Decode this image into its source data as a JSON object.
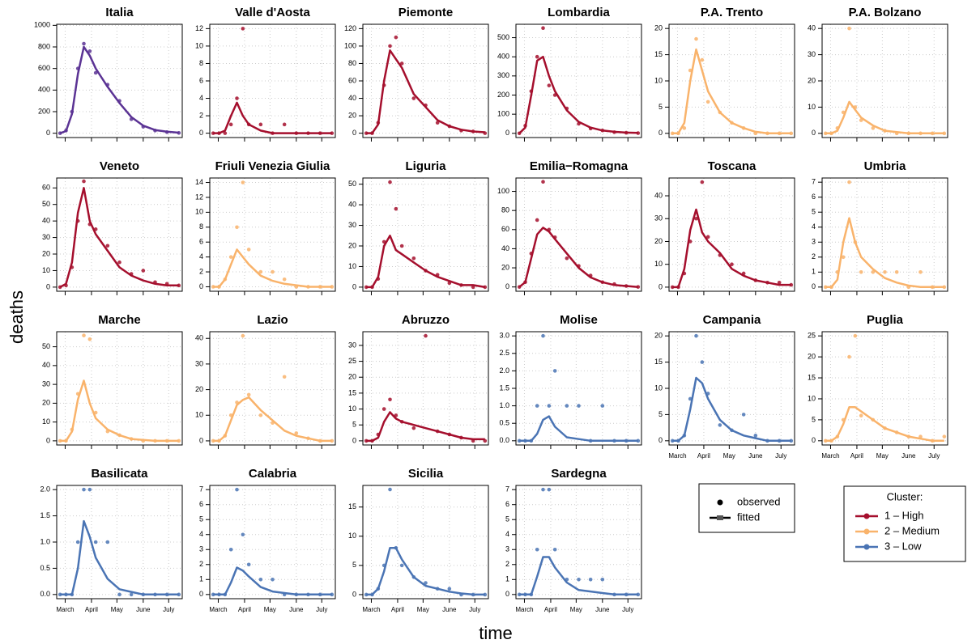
{
  "figure": {
    "x_label": "time",
    "y_label": "deaths",
    "grid": true,
    "x": [
      0,
      7,
      14,
      21,
      28,
      35,
      42,
      56,
      70,
      84,
      98,
      112,
      126,
      140
    ],
    "xlim": [
      -4,
      144
    ],
    "xticks": [
      {
        "value": 6,
        "label": "March"
      },
      {
        "value": 37,
        "label": "April"
      },
      {
        "value": 67,
        "label": "May"
      },
      {
        "value": 98,
        "label": "June"
      },
      {
        "value": 128,
        "label": "July"
      }
    ],
    "legend_marks": [
      "observed",
      "fitted"
    ],
    "legend": {
      "title": "Cluster:",
      "entries": [
        {
          "name": "1 – High",
          "color": "#a50f2d"
        },
        {
          "name": "2 – Medium",
          "color": "#f9b36b"
        },
        {
          "name": "3 – Low",
          "color": "#4a74b4"
        }
      ]
    }
  },
  "chart_data": [
    {
      "type": "line",
      "title": "Italia",
      "color": "#5b3394",
      "ylim": [
        -40,
        1010
      ],
      "yticks": [
        0,
        200,
        400,
        600,
        800,
        1000
      ],
      "show_xtick_labels": false,
      "fitted": [
        0,
        20,
        180,
        550,
        800,
        720,
        600,
        430,
        280,
        150,
        70,
        30,
        15,
        5
      ],
      "observed": [
        0,
        25,
        200,
        600,
        830,
        760,
        560,
        450,
        300,
        130,
        60,
        25,
        10,
        3
      ]
    },
    {
      "type": "line",
      "title": "Valle d'Aosta",
      "color": "#a50f2d",
      "ylim": [
        -0.5,
        12.5
      ],
      "yticks": [
        0,
        2,
        4,
        6,
        8,
        10,
        12
      ],
      "show_xtick_labels": false,
      "fitted": [
        0,
        0,
        0.3,
        2,
        3.5,
        2,
        1,
        0.3,
        0,
        0,
        0,
        0,
        0,
        0
      ],
      "observed": [
        0,
        0,
        0,
        1,
        4,
        12,
        1,
        1,
        0,
        1,
        0,
        0,
        0,
        0
      ]
    },
    {
      "type": "line",
      "title": "Piemonte",
      "color": "#a50f2d",
      "ylim": [
        -5,
        125
      ],
      "yticks": [
        0,
        20,
        40,
        60,
        80,
        100,
        120
      ],
      "show_xtick_labels": false,
      "fitted": [
        0,
        0,
        10,
        60,
        95,
        85,
        75,
        45,
        30,
        15,
        8,
        4,
        2,
        1
      ],
      "observed": [
        0,
        0,
        12,
        55,
        100,
        110,
        80,
        40,
        32,
        12,
        8,
        3,
        2,
        0
      ]
    },
    {
      "type": "line",
      "title": "Lombardia",
      "color": "#a50f2d",
      "ylim": [
        -22,
        570
      ],
      "yticks": [
        0,
        100,
        200,
        300,
        400,
        500
      ],
      "show_xtick_labels": false,
      "fitted": [
        0,
        30,
        200,
        380,
        400,
        300,
        220,
        120,
        60,
        30,
        15,
        8,
        4,
        2
      ],
      "observed": [
        0,
        40,
        220,
        400,
        550,
        250,
        200,
        130,
        50,
        25,
        15,
        6,
        3,
        1
      ]
    },
    {
      "type": "line",
      "title": "P.A. Trento",
      "color": "#f9b36b",
      "ylim": [
        -0.8,
        20.8
      ],
      "yticks": [
        0,
        5,
        10,
        15,
        20
      ],
      "show_xtick_labels": false,
      "fitted": [
        0,
        0,
        2,
        10,
        16,
        12,
        8,
        4,
        2,
        1,
        0.3,
        0,
        0,
        0
      ],
      "observed": [
        0,
        0,
        1,
        12,
        18,
        14,
        6,
        4,
        2,
        1,
        0,
        0,
        0,
        0
      ]
    },
    {
      "type": "line",
      "title": "P.A. Bolzano",
      "color": "#f9b36b",
      "ylim": [
        -1.6,
        41.6
      ],
      "yticks": [
        0,
        10,
        20,
        30,
        40
      ],
      "show_xtick_labels": false,
      "fitted": [
        0,
        0,
        1,
        6,
        12,
        9,
        6,
        3,
        1,
        0.5,
        0,
        0,
        0,
        0
      ],
      "observed": [
        0,
        0,
        2,
        8,
        40,
        10,
        5,
        2,
        1,
        0,
        0,
        0,
        0,
        0
      ]
    },
    {
      "type": "line",
      "title": "Veneto",
      "color": "#a50f2d",
      "ylim": [
        -2.5,
        66
      ],
      "yticks": [
        0,
        10,
        20,
        30,
        40,
        50,
        60
      ],
      "show_xtick_labels": false,
      "fitted": [
        0,
        2,
        15,
        45,
        60,
        40,
        32,
        22,
        12,
        7,
        4,
        2,
        1,
        1
      ],
      "observed": [
        0,
        1,
        12,
        40,
        64,
        38,
        35,
        25,
        15,
        8,
        10,
        3,
        2,
        1
      ]
    },
    {
      "type": "line",
      "title": "Friuli Venezia Giulia",
      "color": "#f9b36b",
      "ylim": [
        -0.6,
        14.6
      ],
      "yticks": [
        0,
        2,
        4,
        6,
        8,
        10,
        12,
        14
      ],
      "show_xtick_labels": false,
      "fitted": [
        0,
        0,
        1,
        3,
        5,
        4,
        3,
        1.5,
        0.8,
        0.4,
        0.2,
        0,
        0,
        0
      ],
      "observed": [
        0,
        0,
        1,
        4,
        8,
        14,
        5,
        2,
        2,
        1,
        0,
        0,
        0,
        0
      ]
    },
    {
      "type": "line",
      "title": "Liguria",
      "color": "#a50f2d",
      "ylim": [
        -2,
        53
      ],
      "yticks": [
        0,
        10,
        20,
        30,
        40,
        50
      ],
      "show_xtick_labels": false,
      "fitted": [
        0,
        0,
        5,
        20,
        25,
        18,
        16,
        12,
        8,
        5,
        3,
        1,
        1,
        0
      ],
      "observed": [
        0,
        0,
        4,
        22,
        51,
        38,
        20,
        14,
        8,
        6,
        2,
        1,
        0,
        0
      ]
    },
    {
      "type": "line",
      "title": "Emilia−Romagna",
      "color": "#a50f2d",
      "ylim": [
        -4.5,
        114
      ],
      "yticks": [
        0,
        20,
        40,
        60,
        80,
        100
      ],
      "show_xtick_labels": false,
      "fitted": [
        0,
        5,
        30,
        55,
        62,
        58,
        50,
        35,
        20,
        10,
        5,
        2,
        1,
        0
      ],
      "observed": [
        0,
        5,
        35,
        70,
        110,
        60,
        52,
        30,
        22,
        12,
        5,
        3,
        1,
        0
      ]
    },
    {
      "type": "line",
      "title": "Toscana",
      "color": "#a50f2d",
      "ylim": [
        -1.8,
        47.8
      ],
      "yticks": [
        0,
        10,
        20,
        30,
        40
      ],
      "show_xtick_labels": false,
      "fitted": [
        0,
        0,
        8,
        25,
        34,
        24,
        20,
        15,
        8,
        5,
        3,
        2,
        1,
        1
      ],
      "observed": [
        0,
        0,
        6,
        20,
        30,
        46,
        22,
        14,
        10,
        6,
        3,
        2,
        2,
        1
      ]
    },
    {
      "type": "line",
      "title": "Umbria",
      "color": "#f9b36b",
      "ylim": [
        -0.28,
        7.28
      ],
      "yticks": [
        0,
        1,
        2,
        3,
        4,
        5,
        6,
        7
      ],
      "show_xtick_labels": false,
      "fitted": [
        0,
        0,
        0.5,
        3,
        4.6,
        3,
        2,
        1.2,
        0.6,
        0.3,
        0.1,
        0,
        0,
        0
      ],
      "observed": [
        0,
        0,
        1,
        2,
        7,
        3,
        1,
        1,
        1,
        1,
        0,
        1,
        0,
        0
      ]
    },
    {
      "type": "line",
      "title": "Marche",
      "color": "#f9b36b",
      "ylim": [
        -2.2,
        58
      ],
      "yticks": [
        0,
        10,
        20,
        30,
        40,
        50
      ],
      "show_xtick_labels": false,
      "fitted": [
        0,
        0,
        5,
        22,
        32,
        20,
        12,
        6,
        3,
        1,
        0.5,
        0,
        0,
        0
      ],
      "observed": [
        0,
        0,
        6,
        25,
        56,
        54,
        15,
        5,
        3,
        1,
        0,
        0,
        0,
        0
      ]
    },
    {
      "type": "line",
      "title": "Lazio",
      "color": "#f9b36b",
      "ylim": [
        -1.6,
        42.6
      ],
      "yticks": [
        0,
        10,
        20,
        30,
        40
      ],
      "show_xtick_labels": false,
      "fitted": [
        0,
        0,
        2,
        8,
        14,
        16,
        17,
        12,
        8,
        4,
        2,
        1,
        0,
        0
      ],
      "observed": [
        0,
        0,
        2,
        10,
        15,
        41,
        18,
        10,
        7,
        25,
        3,
        1,
        0,
        0
      ]
    },
    {
      "type": "line",
      "title": "Abruzzo",
      "color": "#a50f2d",
      "ylim": [
        -1.3,
        34.3
      ],
      "yticks": [
        0,
        5,
        10,
        15,
        20,
        25,
        30
      ],
      "show_xtick_labels": false,
      "fitted": [
        0,
        0,
        1,
        6,
        9,
        7,
        6,
        5,
        4,
        3,
        2,
        1,
        0.5,
        0.5
      ],
      "observed": [
        0,
        0,
        2,
        10,
        13,
        8,
        6,
        4,
        33,
        3,
        2,
        1,
        0,
        0
      ]
    },
    {
      "type": "line",
      "title": "Molise",
      "color": "#4a74b4",
      "ylim": [
        -0.12,
        3.12
      ],
      "yticks": [
        {
          "value": 0,
          "label": "0.0"
        },
        {
          "value": 0.5,
          "label": "0.5"
        },
        {
          "value": 1,
          "label": "1.0"
        },
        {
          "value": 1.5,
          "label": "1.5"
        },
        {
          "value": 2,
          "label": "2.0"
        },
        {
          "value": 2.5,
          "label": "2.5"
        },
        {
          "value": 3,
          "label": "3.0"
        }
      ],
      "show_xtick_labels": false,
      "fitted": [
        0,
        0,
        0,
        0.2,
        0.6,
        0.7,
        0.4,
        0.1,
        0.05,
        0,
        0,
        0,
        0,
        0
      ],
      "observed": [
        0,
        0,
        0,
        1,
        3,
        1,
        2,
        1,
        1,
        0,
        1,
        0,
        0,
        0
      ]
    },
    {
      "type": "line",
      "title": "Campania",
      "color": "#4a74b4",
      "ylim": [
        -0.8,
        20.8
      ],
      "yticks": [
        0,
        5,
        10,
        15,
        20
      ],
      "show_xtick_labels": true,
      "fitted": [
        0,
        0,
        1,
        6,
        12,
        11,
        8,
        4,
        2,
        1,
        0.5,
        0,
        0,
        0
      ],
      "observed": [
        0,
        0,
        1,
        8,
        20,
        15,
        9,
        3,
        2,
        5,
        1,
        0,
        0,
        0
      ]
    },
    {
      "type": "line",
      "title": "Puglia",
      "color": "#f9b36b",
      "ylim": [
        -1,
        26
      ],
      "yticks": [
        0,
        5,
        10,
        15,
        20,
        25
      ],
      "show_xtick_labels": true,
      "fitted": [
        0,
        0,
        1,
        4,
        8,
        8,
        7,
        5,
        3,
        2,
        1,
        0.5,
        0,
        0
      ],
      "observed": [
        0,
        0,
        1,
        5,
        20,
        25,
        6,
        5,
        3,
        2,
        1,
        1,
        0,
        1
      ]
    },
    {
      "type": "line",
      "title": "Basilicata",
      "color": "#4a74b4",
      "ylim": [
        -0.08,
        2.08
      ],
      "yticks": [
        {
          "value": 0,
          "label": "0.0"
        },
        {
          "value": 0.5,
          "label": "0.5"
        },
        {
          "value": 1,
          "label": "1.0"
        },
        {
          "value": 1.5,
          "label": "1.5"
        },
        {
          "value": 2,
          "label": "2.0"
        }
      ],
      "show_xtick_labels": true,
      "fitted": [
        0,
        0,
        0,
        0.5,
        1.4,
        1.1,
        0.7,
        0.3,
        0.1,
        0.05,
        0,
        0,
        0,
        0
      ],
      "observed": [
        0,
        0,
        0,
        1,
        2,
        2,
        1,
        1,
        0,
        0,
        0,
        0,
        0,
        0
      ]
    },
    {
      "type": "line",
      "title": "Calabria",
      "color": "#4a74b4",
      "ylim": [
        -0.28,
        7.28
      ],
      "yticks": [
        0,
        1,
        2,
        3,
        4,
        5,
        6,
        7
      ],
      "show_xtick_labels": true,
      "fitted": [
        0,
        0,
        0,
        0.8,
        1.8,
        1.6,
        1.2,
        0.5,
        0.2,
        0.1,
        0,
        0,
        0,
        0
      ],
      "observed": [
        0,
        0,
        0,
        3,
        7,
        4,
        2,
        1,
        1,
        0,
        0,
        0,
        0,
        0
      ]
    },
    {
      "type": "line",
      "title": "Sicilia",
      "color": "#4a74b4",
      "ylim": [
        -0.7,
        18.7
      ],
      "yticks": [
        0,
        5,
        10,
        15
      ],
      "show_xtick_labels": true,
      "fitted": [
        0,
        0,
        1,
        4,
        8,
        8,
        6,
        3,
        1.5,
        1,
        0.5,
        0.2,
        0,
        0
      ],
      "observed": [
        0,
        0,
        1,
        5,
        18,
        8,
        5,
        3,
        2,
        1,
        1,
        0,
        0,
        0
      ]
    },
    {
      "type": "line",
      "title": "Sardegna",
      "color": "#4a74b4",
      "ylim": [
        -0.28,
        7.28
      ],
      "yticks": [
        0,
        1,
        2,
        3,
        4,
        5,
        6,
        7
      ],
      "show_xtick_labels": true,
      "fitted": [
        0,
        0,
        0,
        1.2,
        2.5,
        2.5,
        1.8,
        0.8,
        0.3,
        0.2,
        0.1,
        0,
        0,
        0
      ],
      "observed": [
        0,
        0,
        0,
        3,
        7,
        7,
        3,
        1,
        1,
        1,
        1,
        0,
        0,
        0
      ]
    }
  ]
}
